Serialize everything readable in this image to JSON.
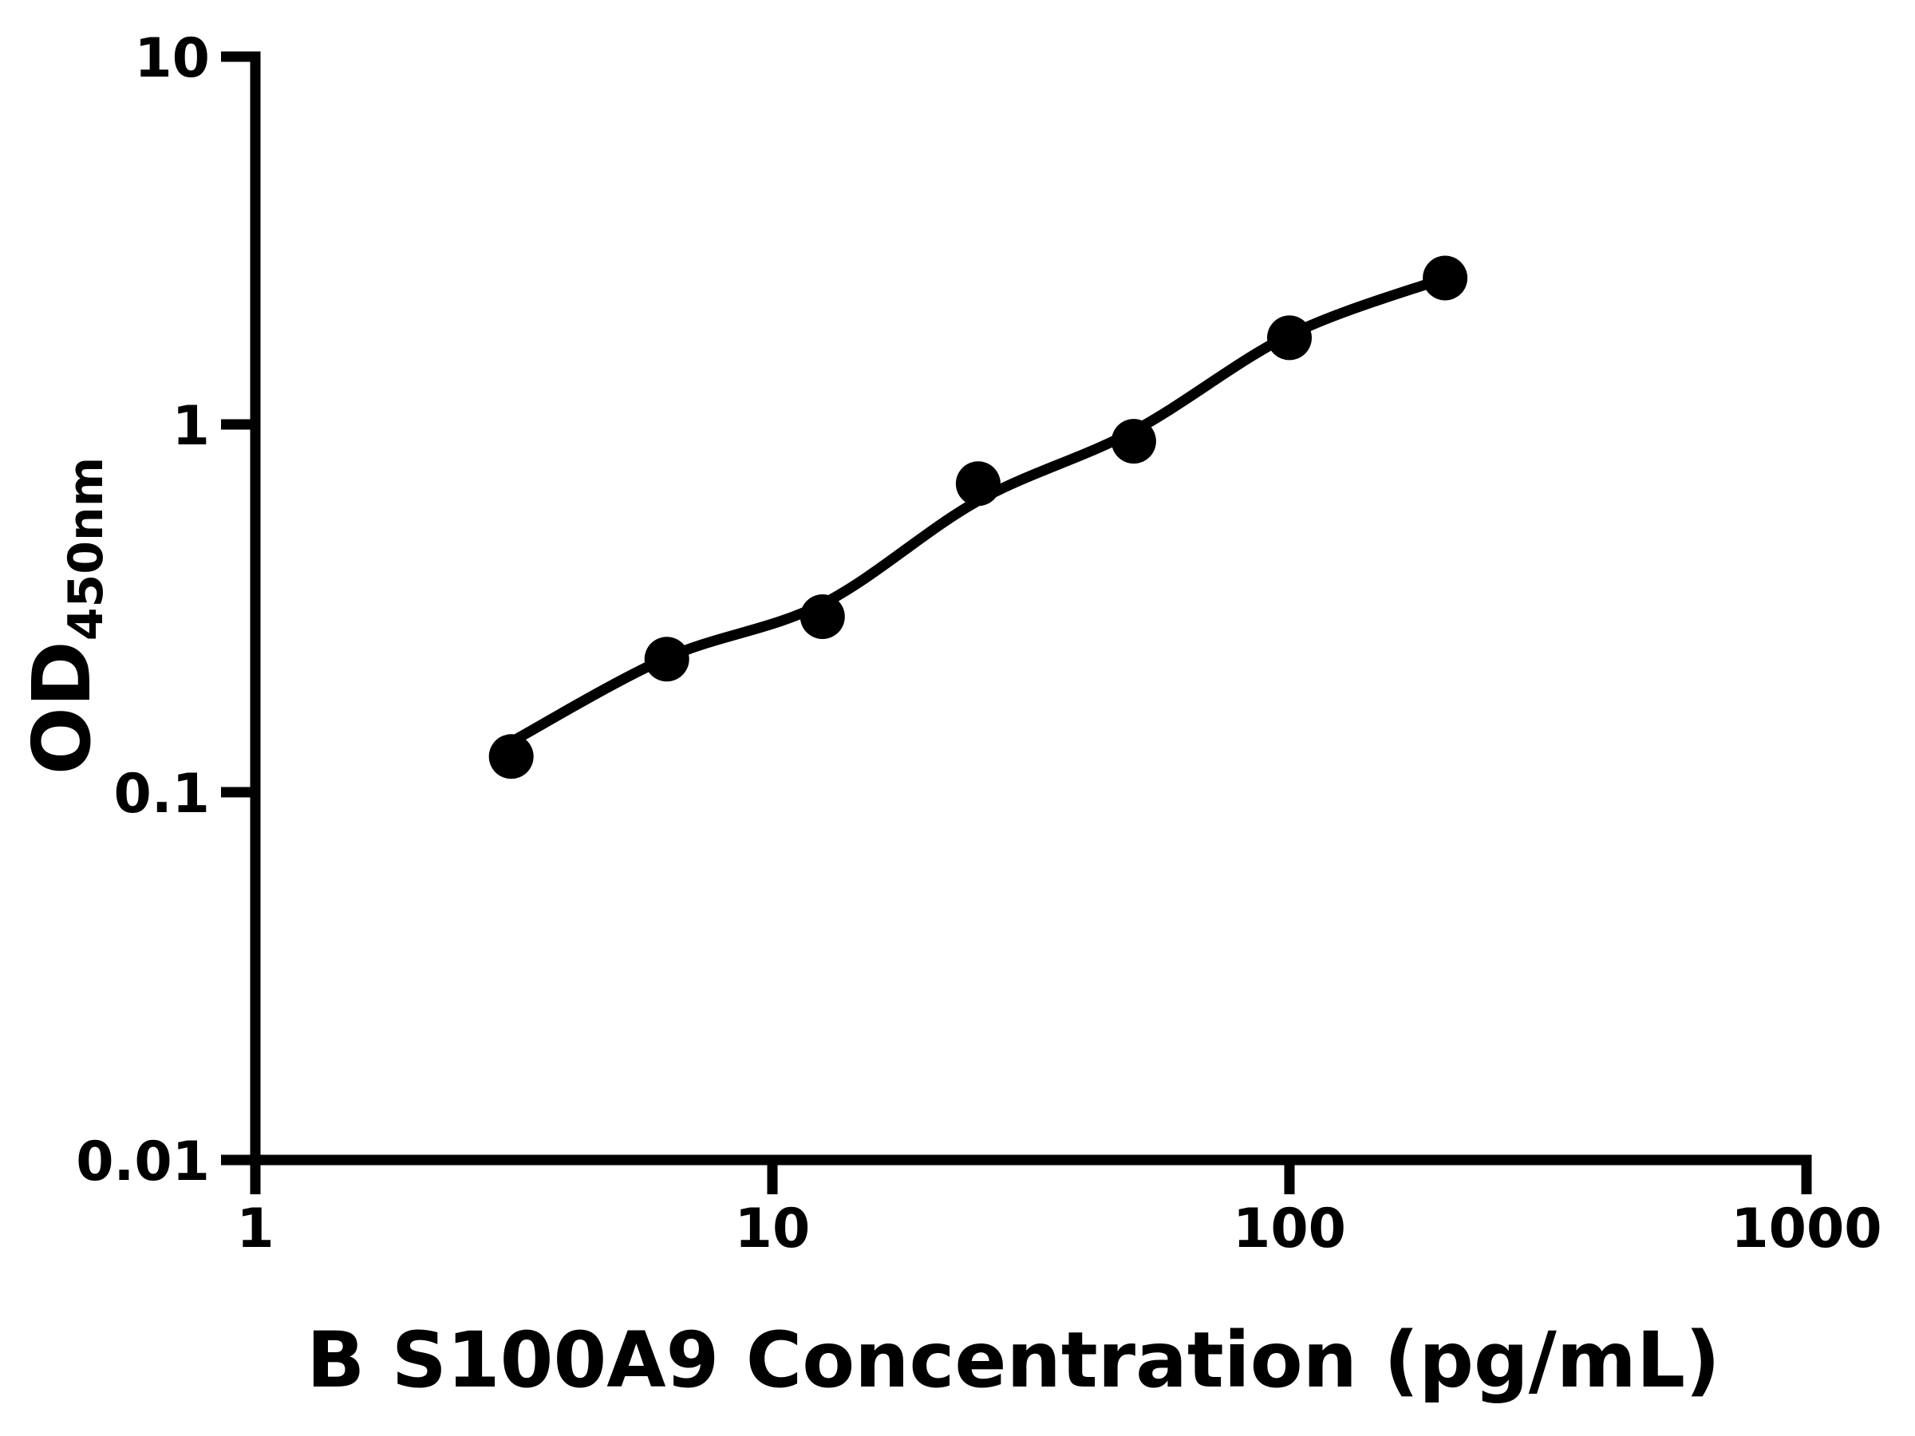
{
  "page": {
    "background_color": "#ffffff",
    "foreground_color": "#000000"
  },
  "chart_data": {
    "type": "scatter",
    "title": "",
    "xlabel": "B S100A9 Concentration (pg/mL)",
    "ylabel": "OD",
    "ylabel_subscript": "450nm",
    "x_scale": "log",
    "y_scale": "log",
    "xlim": [
      1,
      1000
    ],
    "ylim": [
      0.01,
      10
    ],
    "grid": false,
    "legend": null,
    "x_ticks": {
      "values": [
        1,
        10,
        100,
        1000
      ],
      "labels": [
        "1",
        "10",
        "100",
        "1000"
      ]
    },
    "y_ticks": {
      "values": [
        10,
        1,
        0.1,
        0.01
      ],
      "labels": [
        "10",
        "1",
        "0.1",
        "0.01"
      ]
    },
    "marker_color": "#000000",
    "line_color": "#000000",
    "marker_shape": "circle",
    "points": [
      {
        "x": 3.125,
        "y": 0.125
      },
      {
        "x": 6.25,
        "y": 0.23
      },
      {
        "x": 12.5,
        "y": 0.3
      },
      {
        "x": 25,
        "y": 0.69
      },
      {
        "x": 50,
        "y": 0.9
      },
      {
        "x": 100,
        "y": 1.72
      },
      {
        "x": 200,
        "y": 2.5
      }
    ],
    "fit_curve": [
      [
        3.125,
        0.137
      ],
      [
        6.25,
        0.232
      ],
      [
        12.5,
        0.325
      ],
      [
        25,
        0.62
      ],
      [
        50,
        0.96
      ],
      [
        100,
        1.75
      ],
      [
        200,
        2.5
      ]
    ]
  }
}
